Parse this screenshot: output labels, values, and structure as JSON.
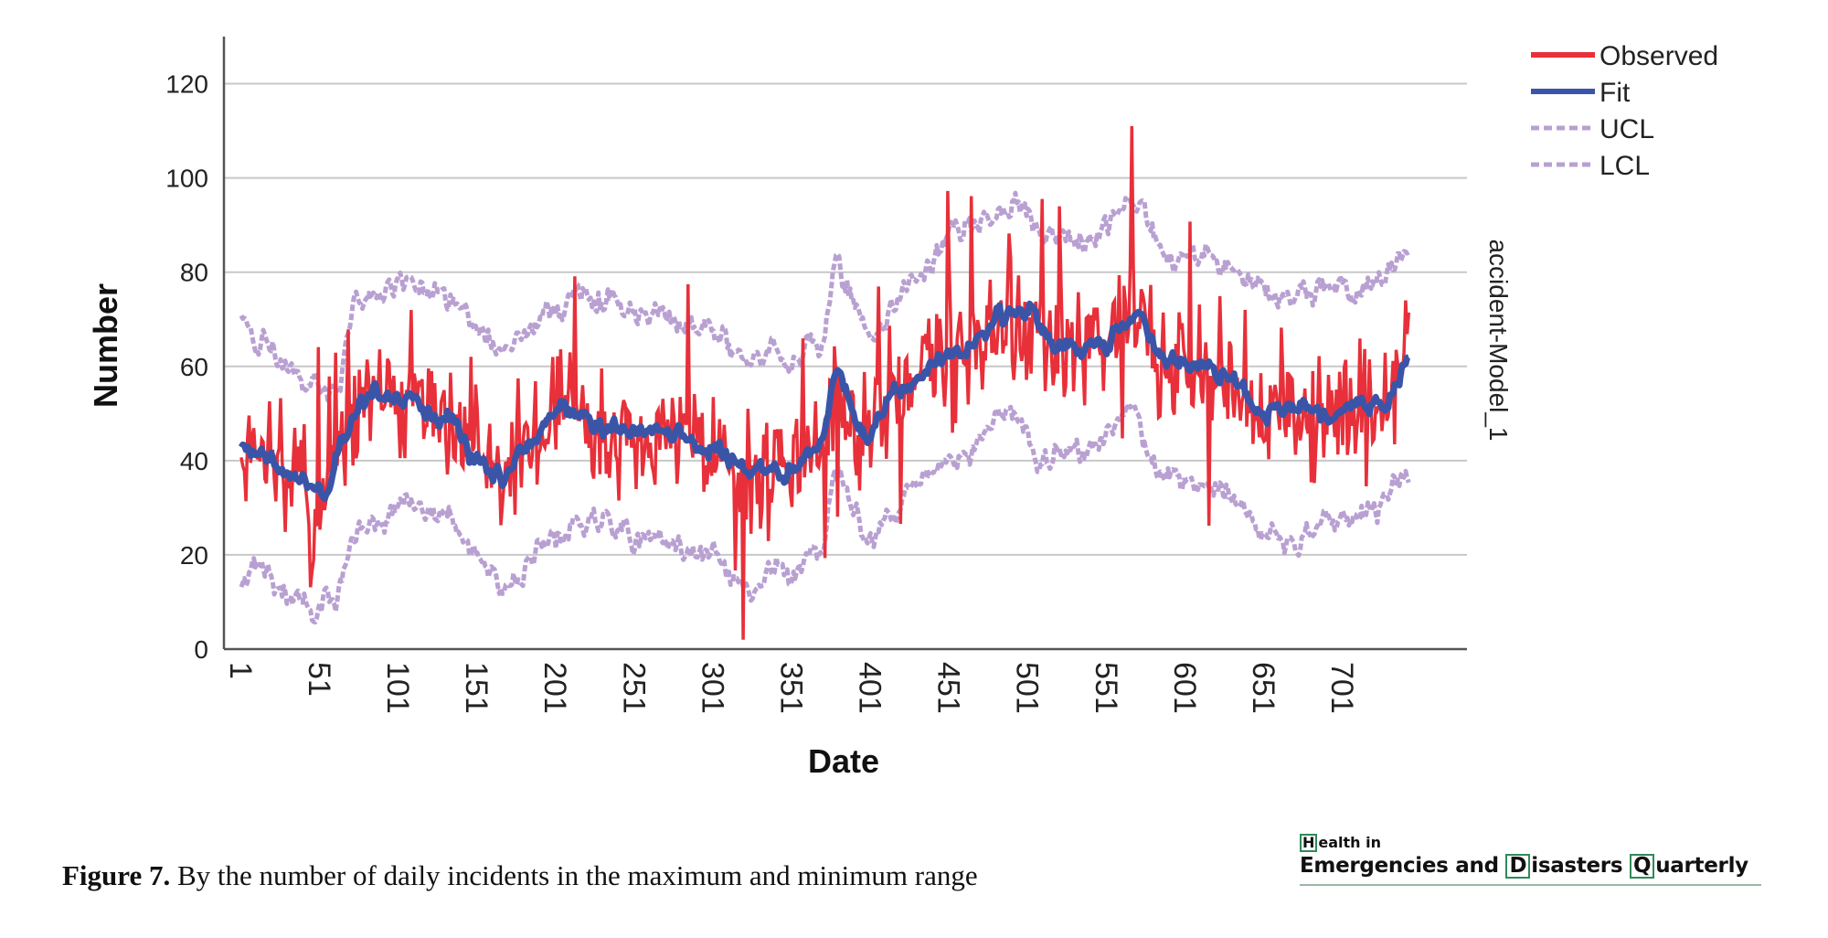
{
  "chart_data": {
    "type": "line",
    "ylabel": "Number",
    "xlabel": "Date",
    "right_label": "accident-Model_1",
    "ylim": [
      0,
      130
    ],
    "xlim": [
      -10,
      780
    ],
    "yticks": [
      0,
      20,
      40,
      60,
      80,
      100,
      120
    ],
    "xticks": [
      1,
      51,
      101,
      151,
      201,
      251,
      301,
      351,
      401,
      451,
      501,
      551,
      601,
      651,
      701
    ],
    "grid": "horizontal",
    "legend_position": "top-right",
    "legend": [
      {
        "label": "Observed",
        "color": "#e8303a",
        "style": "solid"
      },
      {
        "label": "Fit",
        "color": "#3a55a8",
        "style": "solid"
      },
      {
        "label": "UCL",
        "color": "#b9a0d2",
        "style": "dashed"
      },
      {
        "label": "LCL",
        "color": "#b9a0d2",
        "style": "dashed"
      }
    ],
    "n_points": 743,
    "fit_knots": {
      "x": [
        1,
        20,
        40,
        55,
        65,
        75,
        90,
        100,
        130,
        150,
        165,
        185,
        205,
        240,
        270,
        300,
        320,
        350,
        370,
        380,
        395,
        420,
        450,
        470,
        485,
        500,
        520,
        550,
        570,
        590,
        610,
        630,
        650,
        670,
        690,
        710,
        730,
        743
      ],
      "y": [
        42,
        40,
        35,
        33,
        45,
        52,
        54,
        54,
        50,
        40,
        37,
        44,
        51,
        47,
        46,
        43,
        38,
        38,
        44,
        60,
        46,
        55,
        62,
        66,
        70,
        72,
        64,
        65,
        70,
        62,
        60,
        58,
        50,
        51,
        50,
        52,
        53,
        62
      ]
    },
    "ucl_knots": {
      "x": [
        1,
        10,
        40,
        60,
        75,
        110,
        130,
        150,
        165,
        200,
        220,
        250,
        300,
        320,
        350,
        370,
        380,
        400,
        430,
        460,
        490,
        510,
        540,
        565,
        590,
        620,
        650,
        670,
        690,
        720,
        743
      ],
      "y": [
        70,
        66,
        57,
        55,
        73,
        78,
        74,
        67,
        63,
        72,
        75,
        72,
        68,
        62,
        62,
        65,
        80,
        68,
        78,
        88,
        95,
        88,
        87,
        96,
        84,
        82,
        76,
        75,
        76,
        77,
        84
      ]
    },
    "lcl_knots": {
      "x": [
        1,
        10,
        40,
        60,
        75,
        110,
        130,
        150,
        165,
        200,
        220,
        250,
        300,
        320,
        350,
        370,
        380,
        400,
        430,
        460,
        490,
        510,
        540,
        565,
        590,
        620,
        650,
        670,
        690,
        720,
        743
      ],
      "y": [
        12,
        18,
        10,
        9,
        26,
        31,
        28,
        20,
        12,
        24,
        28,
        24,
        20,
        14,
        16,
        22,
        38,
        24,
        35,
        42,
        50,
        40,
        42,
        50,
        36,
        34,
        26,
        24,
        27,
        29,
        36
      ]
    },
    "observed_summary": {
      "min": {
        "x": 320,
        "y": 2
      },
      "max": {
        "x": 567,
        "y": 111
      }
    }
  },
  "caption": {
    "label": "Figure 7.",
    "text": " By the number of daily incidents in the maximum and minimum range"
  },
  "logo": {
    "line1": "Health in",
    "line2_parts": [
      "Emergencies and ",
      "D",
      "isasters ",
      "Q",
      "uarterly"
    ]
  }
}
